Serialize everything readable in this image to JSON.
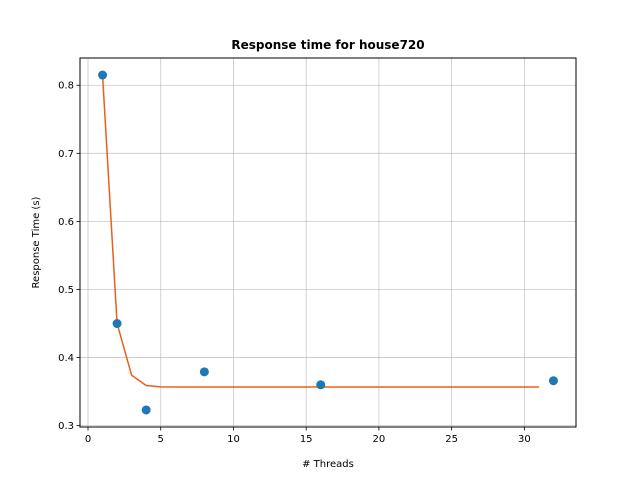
{
  "chart_data": {
    "type": "scatter",
    "title": "Response time for house720",
    "xlabel": "# Threads",
    "ylabel": "Response Time (s)",
    "xlim": [
      -0.55,
      33.55
    ],
    "ylim": [
      0.298,
      0.84
    ],
    "x_ticks": [
      0,
      5,
      10,
      15,
      20,
      25,
      30
    ],
    "y_ticks": [
      0.3,
      0.4,
      0.5,
      0.6,
      0.7,
      0.8
    ],
    "grid": true,
    "series": [
      {
        "kind": "scatter",
        "color": "#1f77b4",
        "x": [
          1,
          2,
          4,
          8,
          16,
          32
        ],
        "y": [
          0.815,
          0.45,
          0.323,
          0.379,
          0.36,
          0.366
        ]
      },
      {
        "kind": "line",
        "color": "#e8601c",
        "x": [
          1,
          2,
          3,
          4,
          5,
          6,
          8,
          10,
          15,
          20,
          25,
          31
        ],
        "y": [
          0.815,
          0.45,
          0.374,
          0.359,
          0.357,
          0.3567,
          0.3567,
          0.3567,
          0.3567,
          0.3567,
          0.3567,
          0.3567
        ]
      }
    ]
  }
}
